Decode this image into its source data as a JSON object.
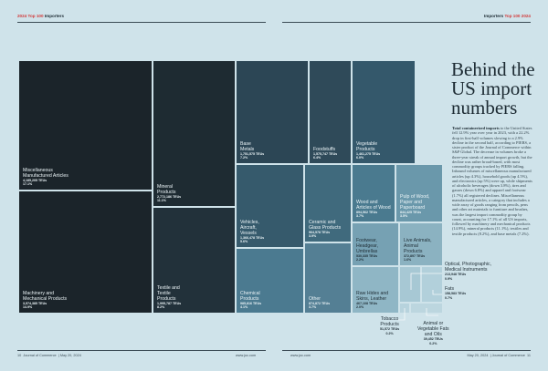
{
  "header": {
    "left_year": "2024",
    "left_section": "Top 100",
    "left_label": "Importers",
    "right_label": "Importers",
    "right_section": "Top 100",
    "right_year": "2024"
  },
  "article": {
    "title": "Behind the\nUS import\nnumbers",
    "lead": "Total containerized imports",
    "body": "to the United States fell 12.9% year over year in 2023, with a 22.2% drop in first-half volumes slowing to a 2.9% decline in the second half, according to PIERS, a sister product of the Journal of Commerce within S&P Global. The decrease in volumes broke a three-year streak of annual import growth, but the decline was rather broad-based, with most commodity groups tracked by PIERS falling. Inbound volumes of miscellaneous manufactured articles (up 4.3%), household goods (up 4.5%), and electronics (up 5%) were up, while shipments of alcoholic beverages (down 3.8%), tires and gasses (down 6.8%) and apparel and footwear (1.7%) all registered declines. Miscellaneous manufactured articles, a category that includes a wide array of goods ranging from pencils, pens and other art materials to furniture and brushes, was the largest import commodity group by count, accounting for 17.1% of all US imports, followed by machinery and mechanical products (14.9%), mineral products (11.1%), textiles and textile products (8.2%), and base metals (7.2%)."
  },
  "treemap": [
    {
      "id": "misc-manufactured",
      "label": "Miscellaneous\nManufactured Articles",
      "value": "4,185,205 TEUs",
      "share": "17.1%"
    },
    {
      "id": "machinery",
      "label": "Machinery and\nMechanical Products",
      "value": "3,574,385 TEUs",
      "share": "14.9%"
    },
    {
      "id": "mineral",
      "label": "Mineral\nProducts",
      "value": "2,772,186 TEUs",
      "share": "11.1%"
    },
    {
      "id": "textile",
      "label": "Textile and\nTextile\nProducts",
      "value": "1,995,787 TEUs",
      "share": "8.2%"
    },
    {
      "id": "base-metals",
      "label": "Base\nMetals",
      "value": "1,751,575 TEUs",
      "share": "7.2%"
    },
    {
      "id": "foodstuffs",
      "label": "Foodstuffs",
      "value": "1,575,747 TEUs",
      "share": "6.4%"
    },
    {
      "id": "vegetable",
      "label": "Vegetable\nProducts",
      "value": "1,461,275 TEUs",
      "share": "6.0%"
    },
    {
      "id": "vehicles",
      "label": "Vehicles,\nAircraft,\nVessels",
      "value": "1,366,478 TEUs",
      "share": "5.6%"
    },
    {
      "id": "ceramic",
      "label": "Ceramic and\nGlass Products",
      "value": "964,578 TEUs",
      "share": "3.9%"
    },
    {
      "id": "wood",
      "label": "Wood and\nArticles of Wood",
      "value": "894,562 TEUs",
      "share": "3.7%"
    },
    {
      "id": "pulp",
      "label": "Pulp of Wood,\nPaper and\nPaperboard",
      "value": "844,425 TEUs",
      "share": "3.5%"
    },
    {
      "id": "chemical",
      "label": "Chemical\nProducts",
      "value": "985,816 TEUs",
      "share": "4.1%"
    },
    {
      "id": "other",
      "label": "Other",
      "value": "874,872 TEUs",
      "share": "3.7%"
    },
    {
      "id": "footwear",
      "label": "Footwear,\nHeadgear,\nUmbrellas",
      "value": "530,335 TEUs",
      "share": "2.2%"
    },
    {
      "id": "live-animals",
      "label": "Live Animals,\nAnimal\nProducts",
      "value": "372,897 TEUs",
      "share": "1.6%"
    },
    {
      "id": "raw-hides",
      "label": "Raw Hides and\nSkins, Leather",
      "value": "467,108 TEUs",
      "share": "2.0%"
    }
  ],
  "callouts": [
    {
      "id": "optical",
      "label": "Optical, Photographic,\nMedical Instruments",
      "value": "213,948 TEUs",
      "share": "0.9%"
    },
    {
      "id": "fats",
      "label": "Fats",
      "value": "158,583 TEUs",
      "share": "0.7%"
    },
    {
      "id": "tobacco",
      "label": "Tobacco\nProducts",
      "value": "51,572 TEUs",
      "share": "0.2%"
    },
    {
      "id": "animal-veg-fats",
      "label": "Animal or\nVegetable Fats\nand Oils",
      "value": "39,452 TEUs",
      "share": "0.2%"
    }
  ],
  "colors": {
    "background": "#cfe3ea",
    "darkest": "#1b242a",
    "dark": "#24323a",
    "mid_dark": "#2c4655",
    "mid": "#3d6275",
    "steel": "#4f7f95",
    "light": "#7aa6b8",
    "pale": "#a8c9d5",
    "header_accent": "#d23a3a"
  },
  "footer": {
    "left_page": "10",
    "left_pub": "Journal of Commerce",
    "left_date": "May 20, 2024",
    "left_url": "www.joc.com",
    "right_url": "www.joc.com",
    "right_date": "May 20, 2024",
    "right_pub": "Journal of Commerce",
    "right_page": "11"
  }
}
